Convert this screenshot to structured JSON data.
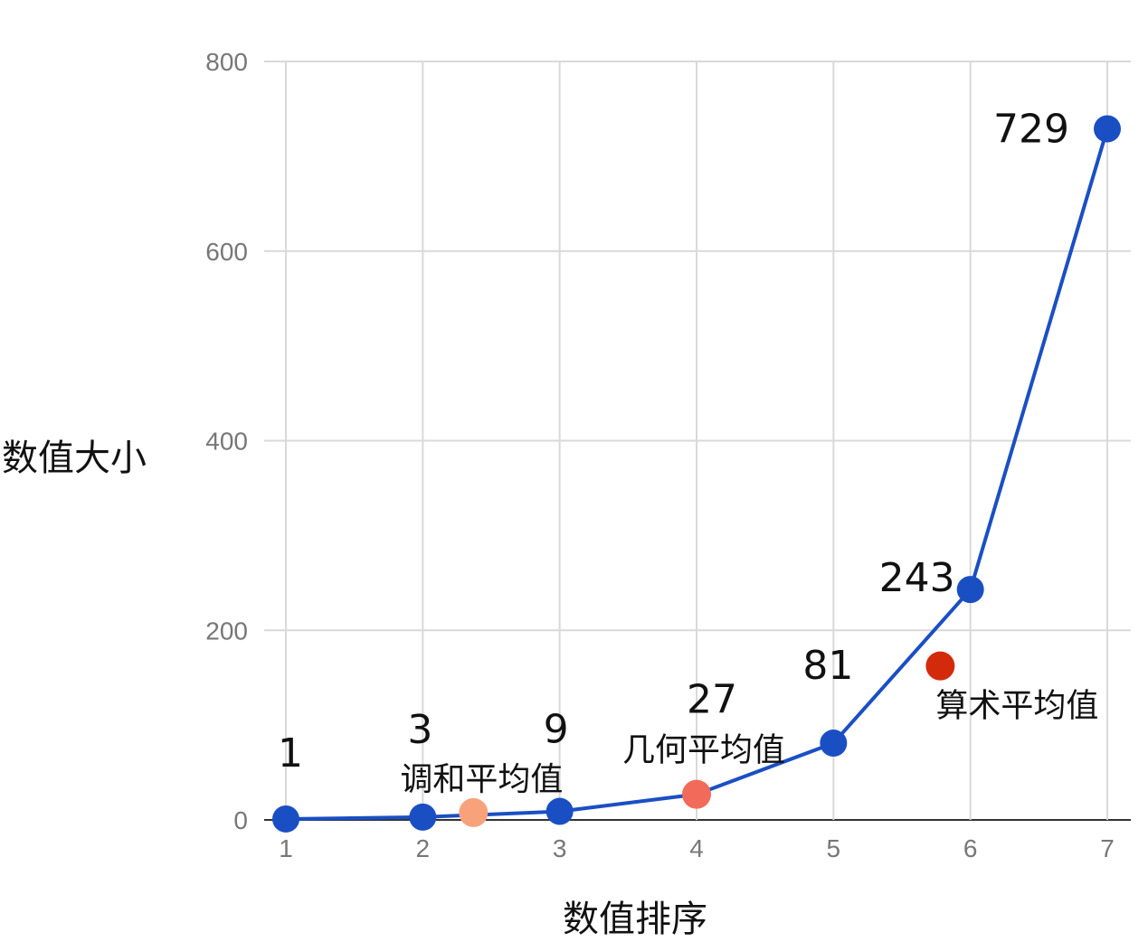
{
  "chart_data": {
    "type": "line",
    "xlabel": "数值排序",
    "ylabel": "数值大小",
    "xlim": [
      1,
      7
    ],
    "ylim": [
      0,
      800
    ],
    "x_ticks": [
      "1",
      "2",
      "3",
      "4",
      "5",
      "6",
      "7"
    ],
    "y_ticks": [
      "0",
      "200",
      "400",
      "600",
      "800"
    ],
    "grid": true,
    "series": [
      {
        "x": [
          1,
          2,
          3,
          4,
          5,
          6,
          7
        ],
        "values": [
          1,
          3,
          9,
          27,
          81,
          243,
          729
        ],
        "data_labels": [
          "1",
          "3",
          "9",
          "27",
          "81",
          "243",
          "729"
        ],
        "color": "#1a4fc4"
      }
    ],
    "annotations": [
      {
        "label": "调和平均值",
        "x": 2.37,
        "y": 7.7,
        "color": "#f8a27c"
      },
      {
        "label": "几何平均值",
        "x": 4.0,
        "y": 27,
        "color": "#f16a5a"
      },
      {
        "label": "算术平均值",
        "x": 5.78,
        "y": 162.4,
        "color": "#d42a0c"
      }
    ]
  }
}
